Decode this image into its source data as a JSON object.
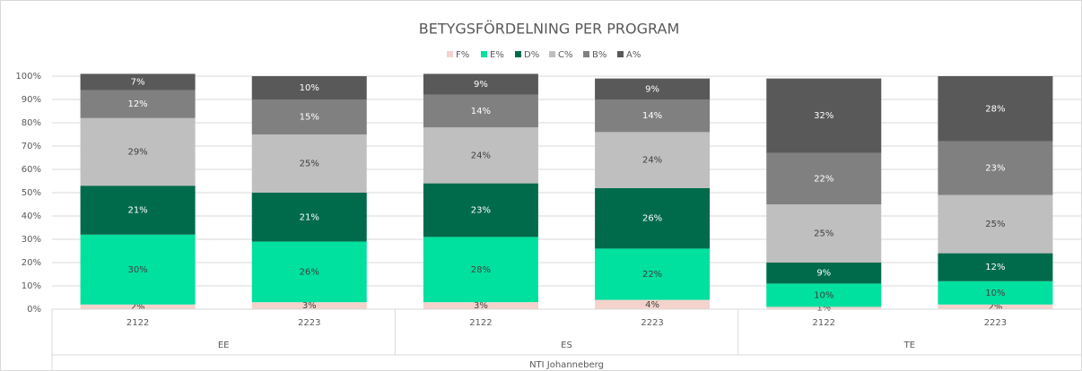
{
  "chart_data": {
    "type": "stacked_bar",
    "title": "BETYGSFÖRDELNING PER PROGRAM",
    "categories": [
      "2122",
      "2223",
      "2122",
      "2223",
      "2122",
      "2223"
    ],
    "groups": [
      "EE",
      "ES",
      "TE"
    ],
    "group_title": "NTI Johanneberg",
    "series": [
      {
        "name": "F%",
        "color": "#f4d3cc",
        "values": [
          2,
          3,
          3,
          4,
          1,
          2
        ],
        "value_labels": [
          "2%",
          "3%",
          "3%",
          "4%",
          "1%",
          "2%"
        ]
      },
      {
        "name": "E%",
        "color": "#00e09e",
        "values": [
          30,
          26,
          28,
          22,
          10,
          10
        ],
        "value_labels": [
          "30%",
          "26%",
          "28%",
          "22%",
          "10%",
          "10%"
        ]
      },
      {
        "name": "D%",
        "color": "#006b4b",
        "values": [
          21,
          21,
          23,
          26,
          9,
          12
        ],
        "value_labels": [
          "21%",
          "21%",
          "23%",
          "26%",
          "9%",
          "12%"
        ]
      },
      {
        "name": "C%",
        "color": "#bfbfbf",
        "values": [
          29,
          25,
          24,
          24,
          25,
          25
        ],
        "value_labels": [
          "29%",
          "25%",
          "24%",
          "24%",
          "25%",
          "25%"
        ]
      },
      {
        "name": "B%",
        "color": "#808080",
        "values": [
          12,
          15,
          14,
          14,
          22,
          23
        ],
        "value_labels": [
          "12%",
          "15%",
          "14%",
          "14%",
          "22%",
          "23%"
        ]
      },
      {
        "name": "A%",
        "color": "#595959",
        "values": [
          7,
          10,
          9,
          9,
          32,
          28
        ],
        "value_labels": [
          "7%",
          "10%",
          "9%",
          "9%",
          "32%",
          "28%"
        ]
      }
    ],
    "ylim": [
      0,
      100
    ],
    "yticks": [
      {
        "value": 0,
        "label": "0%"
      },
      {
        "value": 10,
        "label": "10%"
      },
      {
        "value": 20,
        "label": "20%"
      },
      {
        "value": 30,
        "label": "30%"
      },
      {
        "value": 40,
        "label": "40%"
      },
      {
        "value": 50,
        "label": "50%"
      },
      {
        "value": 60,
        "label": "60%"
      },
      {
        "value": 70,
        "label": "70%"
      },
      {
        "value": 80,
        "label": "80%"
      },
      {
        "value": 90,
        "label": "90%"
      },
      {
        "value": 100,
        "label": "100%"
      }
    ],
    "grid": true,
    "legend": "top"
  }
}
